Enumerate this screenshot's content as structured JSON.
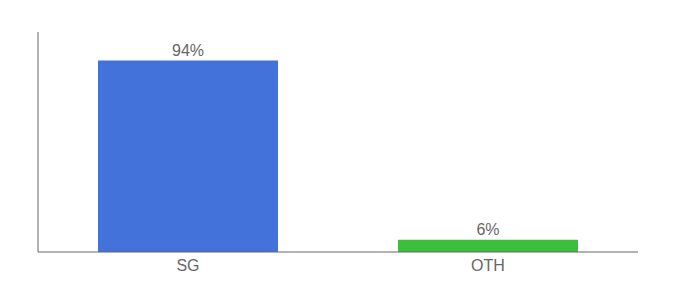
{
  "chart_data": {
    "type": "bar",
    "categories": [
      "SG",
      "OTH"
    ],
    "values": [
      94,
      6
    ],
    "value_labels": [
      "94%",
      "6%"
    ],
    "colors": [
      "#4472db",
      "#3dbf3d"
    ],
    "ylim": [
      0,
      108
    ],
    "data_labels": true,
    "tick_labels": "x",
    "grid": false
  }
}
